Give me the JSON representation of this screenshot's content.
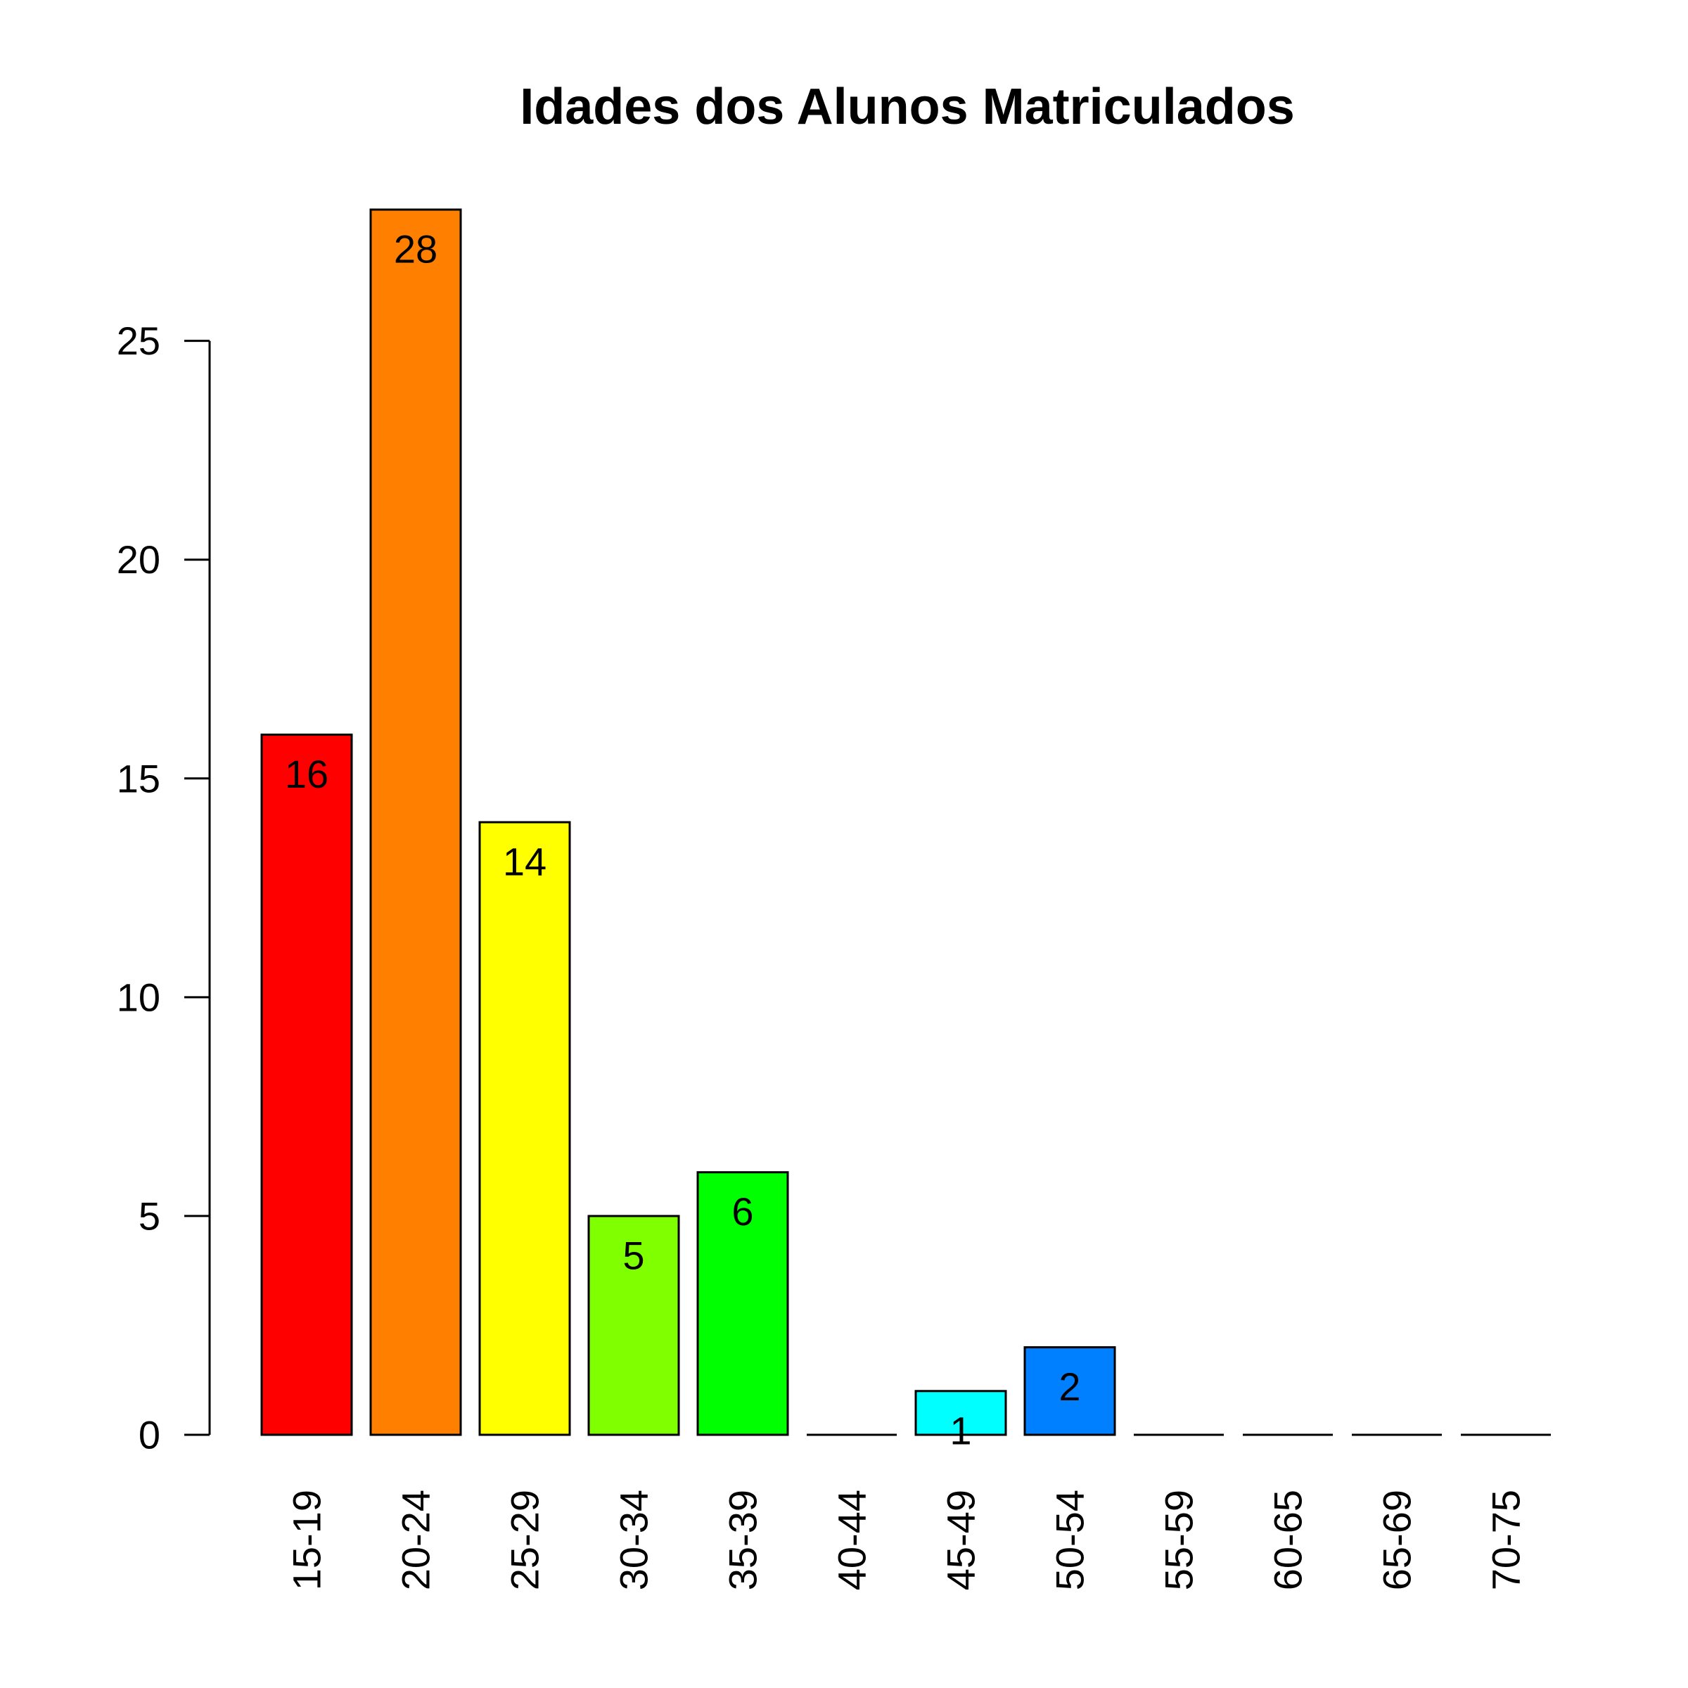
{
  "chart_data": {
    "type": "bar",
    "title": "Idades dos Alunos Matriculados",
    "xlabel": "",
    "ylabel": "",
    "categories": [
      "15-19",
      "20-24",
      "25-29",
      "30-34",
      "35-39",
      "40-44",
      "45-49",
      "50-54",
      "55-59",
      "60-65",
      "65-69",
      "70-75"
    ],
    "values": [
      16,
      28,
      14,
      5,
      6,
      0,
      1,
      2,
      0,
      0,
      0,
      0
    ],
    "data_labels": [
      "16",
      "28",
      "14",
      "5",
      "6",
      "",
      "1",
      "2",
      "",
      "",
      "",
      ""
    ],
    "colors": [
      "#FF0000",
      "#FF8000",
      "#FFFF00",
      "#80FF00",
      "#00FF00",
      "#00FF80",
      "#00FFFF",
      "#0080FF",
      "#0000FF",
      "#8000FF",
      "#FF00FF",
      "#FF0080"
    ],
    "ylim": [
      0,
      28
    ],
    "yticks": [
      0,
      5,
      10,
      15,
      20,
      25
    ],
    "ytick_labels": [
      "0",
      "5",
      "10",
      "15",
      "20",
      "25"
    ],
    "grid": false,
    "legend": "none",
    "tick_label_orientation": "vertical"
  }
}
